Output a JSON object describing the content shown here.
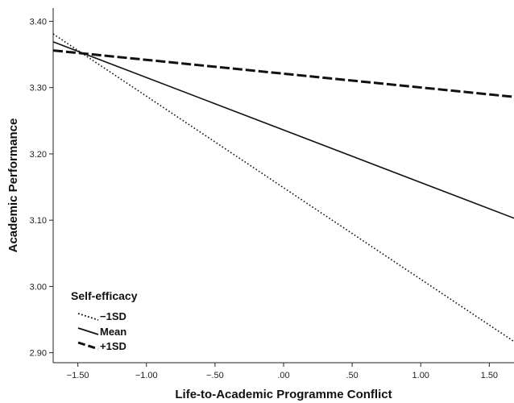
{
  "chart_data": {
    "type": "line",
    "xlabel": "Life-to-Academic Programme Conflict",
    "ylabel": "Academic Performance",
    "xlim": [
      -1.68,
      1.68
    ],
    "ylim": [
      2.885,
      3.42
    ],
    "x_ticks": [
      -1.5,
      -1.0,
      -0.5,
      0.0,
      0.5,
      1.0,
      1.5
    ],
    "x_tick_labels": [
      "−1.50",
      "−1.00",
      "−.50",
      ".00",
      ".50",
      "1.00",
      "1.50"
    ],
    "y_ticks": [
      2.9,
      3.0,
      3.1,
      3.2,
      3.3,
      3.4
    ],
    "y_tick_labels": [
      "2.90",
      "3.00",
      "3.10",
      "3.20",
      "3.30",
      "3.40"
    ],
    "grid": false,
    "legend": {
      "title": "Self-efficacy",
      "position": "bottom-left"
    },
    "series": [
      {
        "name": "−1SD",
        "style": "dotted",
        "x": [
          -1.68,
          1.68
        ],
        "y": [
          3.381,
          2.917
        ]
      },
      {
        "name": "Mean",
        "style": "solid",
        "x": [
          -1.68,
          1.68
        ],
        "y": [
          3.369,
          3.103
        ]
      },
      {
        "name": "+1SD",
        "style": "dashed",
        "x": [
          -1.68,
          1.68
        ],
        "y": [
          3.356,
          3.286
        ]
      }
    ]
  }
}
